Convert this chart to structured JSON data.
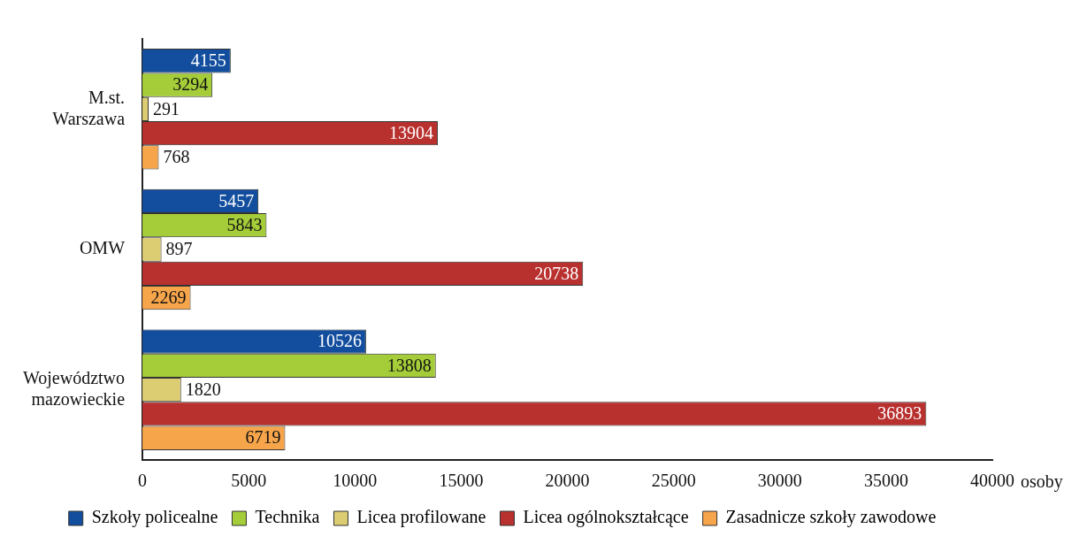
{
  "chart_data": {
    "type": "bar",
    "orientation": "horizontal",
    "xlabel": "osoby",
    "categories": [
      "M.st. Warszawa",
      "OMW",
      "Województwo mazowieckie"
    ],
    "series": [
      {
        "name": "Szkoły policealne",
        "color": "#134e9e",
        "values": [
          4155,
          5457,
          10526
        ]
      },
      {
        "name": "Technika",
        "color": "#a5cd39",
        "values": [
          3294,
          5843,
          13808
        ]
      },
      {
        "name": "Licea profilowane",
        "color": "#dccd73",
        "values": [
          291,
          897,
          1820
        ]
      },
      {
        "name": "Licea ogólnokształcące",
        "color": "#b8312f",
        "values": [
          13904,
          20738,
          36893
        ]
      },
      {
        "name": "Zasadnicze szkoły zawodowe",
        "color": "#f7a54b",
        "values": [
          768,
          2269,
          6719
        ]
      }
    ],
    "xlim": [
      0,
      40000
    ],
    "xticks": [
      0,
      5000,
      10000,
      15000,
      20000,
      25000,
      30000,
      35000,
      40000
    ],
    "grid": false,
    "legend": "bottom",
    "data_labels": true
  }
}
